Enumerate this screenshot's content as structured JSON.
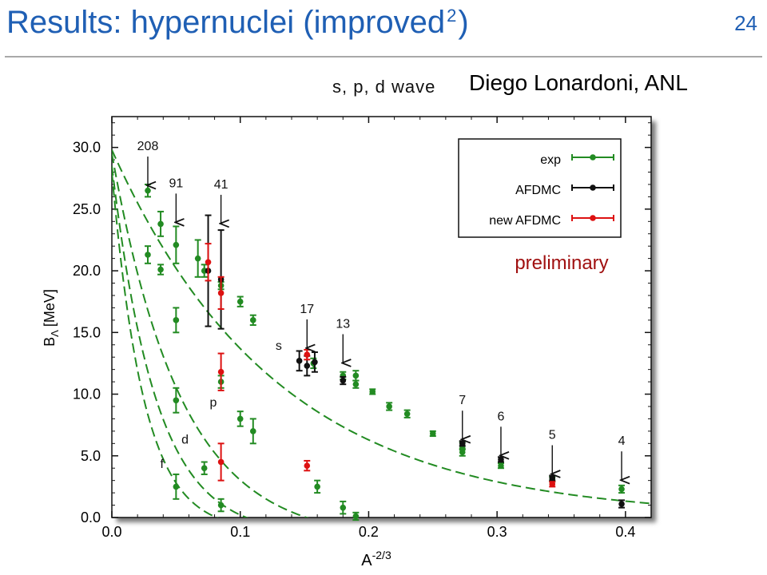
{
  "slide": {
    "title_main": "Results: hypernuclei (improved",
    "title_sup": "2",
    "title_end": ")",
    "number": "24",
    "subtitle": "s, p, d wave",
    "author": "Diego Lonardoni, ANL"
  },
  "chart_data": {
    "type": "scatter",
    "xlabel_base": "A",
    "xlabel_exp": "-2/3",
    "ylabel_base": "B",
    "ylabel_sub": "Λ",
    "ylabel_unit": "[MeV]",
    "xlim": [
      0.0,
      0.42
    ],
    "ylim": [
      0.0,
      32.5
    ],
    "x_ticks": [
      "0.0",
      "0.1",
      "0.2",
      "0.3",
      "0.4"
    ],
    "x_tick_values": [
      0.0,
      0.1,
      0.2,
      0.3,
      0.4
    ],
    "y_ticks": [
      "0.0",
      "5.0",
      "10.0",
      "15.0",
      "20.0",
      "25.0",
      "30.0"
    ],
    "y_tick_values": [
      0,
      5,
      10,
      15,
      20,
      25,
      30
    ],
    "grid": false,
    "legend_position": "top-right",
    "series": [
      {
        "name": "exp",
        "color": "#228b22",
        "points": [
          {
            "x": 0.028,
            "y": 26.5,
            "err": 0.5
          },
          {
            "x": 0.028,
            "y": 21.3,
            "err": 0.7
          },
          {
            "x": 0.038,
            "y": 23.8,
            "err": 1.0
          },
          {
            "x": 0.038,
            "y": 20.1,
            "err": 0.4
          },
          {
            "x": 0.05,
            "y": 22.1,
            "err": 1.5
          },
          {
            "x": 0.05,
            "y": 16.0,
            "err": 1.0
          },
          {
            "x": 0.05,
            "y": 9.5,
            "err": 1.0
          },
          {
            "x": 0.05,
            "y": 2.5,
            "err": 1.0
          },
          {
            "x": 0.067,
            "y": 21.0,
            "err": 1.5
          },
          {
            "x": 0.072,
            "y": 20.0,
            "err": 0.5
          },
          {
            "x": 0.072,
            "y": 4.0,
            "err": 0.5
          },
          {
            "x": 0.085,
            "y": 18.8,
            "err": 0.3
          },
          {
            "x": 0.085,
            "y": 11.0,
            "err": 0.5
          },
          {
            "x": 0.085,
            "y": 1.0,
            "err": 0.5
          },
          {
            "x": 0.1,
            "y": 17.5,
            "err": 0.4
          },
          {
            "x": 0.1,
            "y": 8.0,
            "err": 0.6
          },
          {
            "x": 0.11,
            "y": 16.0,
            "err": 0.4
          },
          {
            "x": 0.11,
            "y": 7.0,
            "err": 1.0
          },
          {
            "x": 0.157,
            "y": 12.5,
            "err": 0.4
          },
          {
            "x": 0.16,
            "y": 2.5,
            "err": 0.5
          },
          {
            "x": 0.18,
            "y": 11.5,
            "err": 0.3
          },
          {
            "x": 0.18,
            "y": 0.8,
            "err": 0.5
          },
          {
            "x": 0.19,
            "y": 10.8,
            "err": 0.3
          },
          {
            "x": 0.19,
            "y": 11.5,
            "err": 0.4
          },
          {
            "x": 0.19,
            "y": 0.1,
            "err": 0.3
          },
          {
            "x": 0.203,
            "y": 10.2,
            "err": 0.2
          },
          {
            "x": 0.216,
            "y": 9.0,
            "err": 0.3
          },
          {
            "x": 0.23,
            "y": 8.4,
            "err": 0.3
          },
          {
            "x": 0.25,
            "y": 6.8,
            "err": 0.2
          },
          {
            "x": 0.273,
            "y": 5.3,
            "err": 0.3
          },
          {
            "x": 0.273,
            "y": 5.8,
            "err": 0.3
          },
          {
            "x": 0.303,
            "y": 4.2,
            "err": 0.2
          },
          {
            "x": 0.343,
            "y": 3.1,
            "err": 0.2
          },
          {
            "x": 0.397,
            "y": 2.3,
            "err": 0.3
          }
        ]
      },
      {
        "name": "AFDMC",
        "color": "#111111",
        "points": [
          {
            "x": 0.075,
            "y": 20.0,
            "err": 4.5
          },
          {
            "x": 0.085,
            "y": 19.3,
            "err": 4.0
          },
          {
            "x": 0.146,
            "y": 12.7,
            "err": 0.8
          },
          {
            "x": 0.152,
            "y": 12.3,
            "err": 0.8
          },
          {
            "x": 0.158,
            "y": 12.6,
            "err": 0.8
          },
          {
            "x": 0.18,
            "y": 11.1,
            "err": 0.3
          },
          {
            "x": 0.273,
            "y": 6.0,
            "err": 0.2
          },
          {
            "x": 0.303,
            "y": 4.7,
            "err": 0.2
          },
          {
            "x": 0.343,
            "y": 3.2,
            "err": 0.2
          },
          {
            "x": 0.397,
            "y": 1.1,
            "err": 0.3
          }
        ]
      },
      {
        "name": "new AFDMC",
        "color": "#dd1111",
        "points": [
          {
            "x": 0.075,
            "y": 20.7,
            "err": 1.5
          },
          {
            "x": 0.085,
            "y": 18.2,
            "err": 1.3
          },
          {
            "x": 0.085,
            "y": 11.8,
            "err": 1.5
          },
          {
            "x": 0.085,
            "y": 4.5,
            "err": 1.5
          },
          {
            "x": 0.152,
            "y": 13.2,
            "err": 0.4
          },
          {
            "x": 0.152,
            "y": 4.2,
            "err": 0.4
          },
          {
            "x": 0.343,
            "y": 2.7,
            "err": 0.2
          }
        ]
      }
    ],
    "fit_curves": [
      {
        "label": "s",
        "y0": 29.8,
        "decay": 0.1286,
        "label_x": 0.13,
        "label_y": 13.6
      },
      {
        "label": "p",
        "y0": 29.5,
        "decay": 0.0541,
        "offset": 1.91,
        "label_x": 0.079,
        "label_y": 9.0
      },
      {
        "label": "d",
        "y0": 28.5,
        "decay": 0.0345,
        "offset": 1.44,
        "label_x": 0.057,
        "label_y": 6.0
      },
      {
        "label": "f",
        "y0": 28.0,
        "decay": 0.0249,
        "offset": 1.1,
        "label_x": 0.039,
        "label_y": 4.0
      }
    ],
    "annotations": [
      {
        "text": "208",
        "x": 0.028,
        "y": 26.8
      },
      {
        "text": "91",
        "x": 0.05,
        "y": 23.8
      },
      {
        "text": "41",
        "x": 0.085,
        "y": 23.7
      },
      {
        "text": "17",
        "x": 0.152,
        "y": 13.6
      },
      {
        "text": "13",
        "x": 0.18,
        "y": 12.4
      },
      {
        "text": "7",
        "x": 0.273,
        "y": 6.2
      },
      {
        "text": "6",
        "x": 0.303,
        "y": 4.9
      },
      {
        "text": "5",
        "x": 0.343,
        "y": 3.4
      },
      {
        "text": "4",
        "x": 0.397,
        "y": 2.9
      }
    ],
    "note": "preliminary",
    "note_color": "#a01010"
  }
}
